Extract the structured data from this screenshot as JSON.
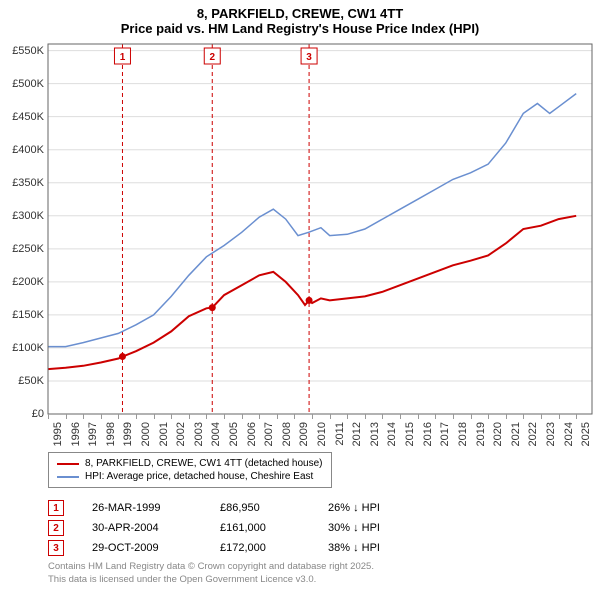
{
  "title": {
    "line1": "8, PARKFIELD, CREWE, CW1 4TT",
    "line2": "Price paid vs. HM Land Registry's House Price Index (HPI)"
  },
  "chart": {
    "type": "line",
    "background_color": "#ffffff",
    "grid_color": "#dddddd",
    "border_color": "#666666",
    "x": {
      "min": 1995,
      "max": 2025.9,
      "ticks": [
        1995,
        1996,
        1997,
        1998,
        1999,
        2000,
        2001,
        2002,
        2003,
        2004,
        2005,
        2006,
        2007,
        2008,
        2009,
        2010,
        2011,
        2012,
        2013,
        2014,
        2015,
        2016,
        2017,
        2018,
        2019,
        2020,
        2021,
        2022,
        2023,
        2024,
        2025
      ],
      "label_fontsize": 11
    },
    "y": {
      "min": 0,
      "max": 560000,
      "ticks": [
        0,
        50000,
        100000,
        150000,
        200000,
        250000,
        300000,
        350000,
        400000,
        450000,
        500000,
        550000
      ],
      "tick_labels": [
        "£0",
        "£50K",
        "£100K",
        "£150K",
        "£200K",
        "£250K",
        "£300K",
        "£350K",
        "£400K",
        "£450K",
        "£500K",
        "£550K"
      ],
      "label_fontsize": 11
    },
    "markers": [
      {
        "n": "1",
        "x": 1999.23,
        "color": "#cc0000",
        "dash": "4,3"
      },
      {
        "n": "2",
        "x": 2004.33,
        "color": "#cc0000",
        "dash": "4,3"
      },
      {
        "n": "3",
        "x": 2009.83,
        "color": "#cc0000",
        "dash": "4,3"
      }
    ],
    "series": [
      {
        "id": "price_paid",
        "label": "8, PARKFIELD, CREWE, CW1 4TT (detached house)",
        "color": "#cc0000",
        "line_width": 2,
        "points": [
          [
            1995.0,
            68000
          ],
          [
            1996.0,
            70000
          ],
          [
            1997.0,
            73000
          ],
          [
            1998.0,
            78000
          ],
          [
            1999.0,
            84000
          ],
          [
            1999.23,
            86950
          ],
          [
            2000.0,
            95000
          ],
          [
            2001.0,
            108000
          ],
          [
            2002.0,
            125000
          ],
          [
            2003.0,
            148000
          ],
          [
            2004.0,
            160000
          ],
          [
            2004.33,
            161000
          ],
          [
            2005.0,
            180000
          ],
          [
            2006.0,
            195000
          ],
          [
            2007.0,
            210000
          ],
          [
            2007.8,
            215000
          ],
          [
            2008.5,
            200000
          ],
          [
            2009.2,
            180000
          ],
          [
            2009.6,
            165000
          ],
          [
            2009.83,
            172000
          ],
          [
            2010.0,
            168000
          ],
          [
            2010.5,
            175000
          ],
          [
            2011.0,
            172000
          ],
          [
            2012.0,
            175000
          ],
          [
            2013.0,
            178000
          ],
          [
            2014.0,
            185000
          ],
          [
            2015.0,
            195000
          ],
          [
            2016.0,
            205000
          ],
          [
            2017.0,
            215000
          ],
          [
            2018.0,
            225000
          ],
          [
            2019.0,
            232000
          ],
          [
            2020.0,
            240000
          ],
          [
            2021.0,
            258000
          ],
          [
            2022.0,
            280000
          ],
          [
            2023.0,
            285000
          ],
          [
            2024.0,
            295000
          ],
          [
            2025.0,
            300000
          ]
        ],
        "sale_markers": [
          {
            "x": 1999.23,
            "y": 86950
          },
          {
            "x": 2004.33,
            "y": 161000
          },
          {
            "x": 2009.83,
            "y": 172000
          }
        ]
      },
      {
        "id": "hpi",
        "label": "HPI: Average price, detached house, Cheshire East",
        "color": "#6a8fd0",
        "line_width": 1.5,
        "points": [
          [
            1995.0,
            102000
          ],
          [
            1996.0,
            102000
          ],
          [
            1997.0,
            108000
          ],
          [
            1998.0,
            115000
          ],
          [
            1999.0,
            122000
          ],
          [
            2000.0,
            135000
          ],
          [
            2001.0,
            150000
          ],
          [
            2002.0,
            178000
          ],
          [
            2003.0,
            210000
          ],
          [
            2004.0,
            238000
          ],
          [
            2005.0,
            255000
          ],
          [
            2006.0,
            275000
          ],
          [
            2007.0,
            298000
          ],
          [
            2007.8,
            310000
          ],
          [
            2008.5,
            295000
          ],
          [
            2009.2,
            270000
          ],
          [
            2009.8,
            275000
          ],
          [
            2010.5,
            282000
          ],
          [
            2011.0,
            270000
          ],
          [
            2012.0,
            272000
          ],
          [
            2013.0,
            280000
          ],
          [
            2014.0,
            295000
          ],
          [
            2015.0,
            310000
          ],
          [
            2016.0,
            325000
          ],
          [
            2017.0,
            340000
          ],
          [
            2018.0,
            355000
          ],
          [
            2019.0,
            365000
          ],
          [
            2020.0,
            378000
          ],
          [
            2021.0,
            410000
          ],
          [
            2022.0,
            455000
          ],
          [
            2022.8,
            470000
          ],
          [
            2023.5,
            455000
          ],
          [
            2024.0,
            465000
          ],
          [
            2025.0,
            485000
          ]
        ]
      }
    ]
  },
  "legend": {
    "border_color": "#888888",
    "fontsize": 10,
    "items": [
      {
        "label": "8, PARKFIELD, CREWE, CW1 4TT (detached house)",
        "color": "#cc0000"
      },
      {
        "label": "HPI: Average price, detached house, Cheshire East",
        "color": "#6a8fd0"
      }
    ]
  },
  "sales": {
    "marker_border_color": "#cc0000",
    "marker_text_color": "#cc0000",
    "rows": [
      {
        "n": "1",
        "date": "26-MAR-1999",
        "price": "£86,950",
        "diff": "26% ↓ HPI"
      },
      {
        "n": "2",
        "date": "30-APR-2004",
        "price": "£161,000",
        "diff": "30% ↓ HPI"
      },
      {
        "n": "3",
        "date": "29-OCT-2009",
        "price": "£172,000",
        "diff": "38% ↓ HPI"
      }
    ]
  },
  "footer": {
    "line1": "Contains HM Land Registry data © Crown copyright and database right 2025.",
    "line2": "This data is licensed under the Open Government Licence v3.0.",
    "color": "#888888",
    "fontsize": 9.5
  }
}
